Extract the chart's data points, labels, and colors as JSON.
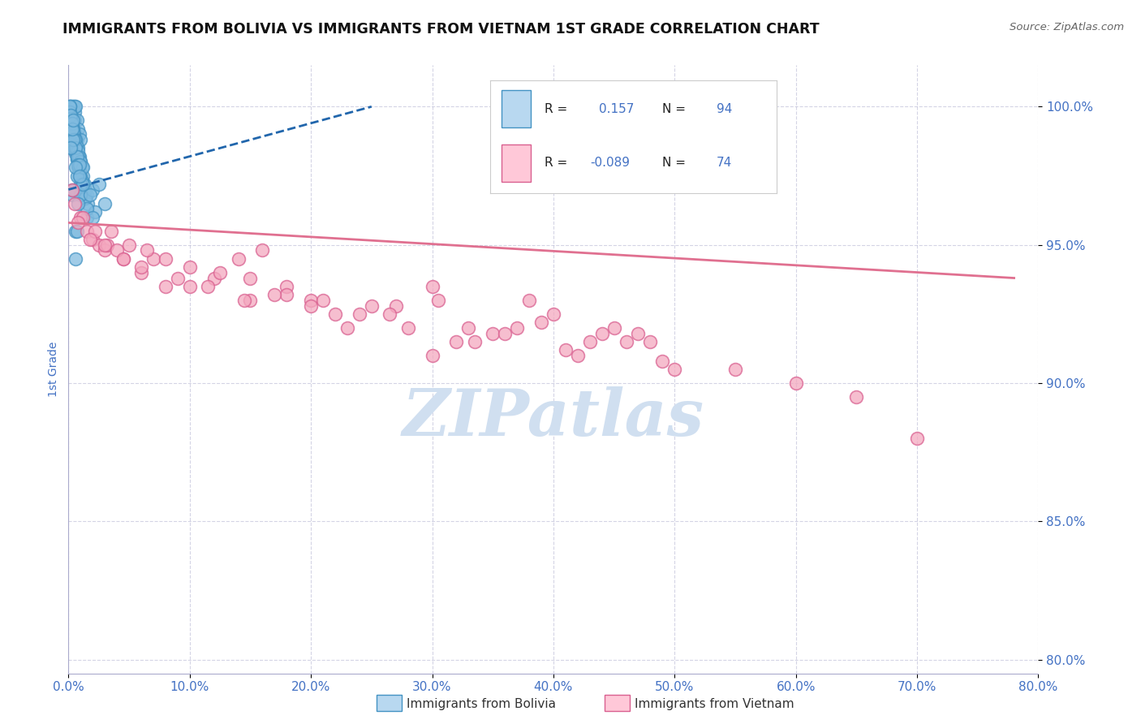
{
  "title": "IMMIGRANTS FROM BOLIVIA VS IMMIGRANTS FROM VIETNAM 1ST GRADE CORRELATION CHART",
  "source_text": "Source: ZipAtlas.com",
  "ylabel": "1st Grade",
  "watermark": "ZIPatlas",
  "xlim": [
    0.0,
    80.0
  ],
  "ylim": [
    79.5,
    101.5
  ],
  "xticks": [
    0.0,
    10.0,
    20.0,
    30.0,
    40.0,
    50.0,
    60.0,
    70.0,
    80.0
  ],
  "yticks": [
    80.0,
    85.0,
    90.0,
    95.0,
    100.0
  ],
  "ytick_labels": [
    "80.0%",
    "85.0%",
    "90.0%",
    "95.0%",
    "100.0%"
  ],
  "xtick_labels": [
    "0.0%",
    "10.0%",
    "20.0%",
    "30.0%",
    "40.0%",
    "50.0%",
    "60.0%",
    "70.0%",
    "80.0%"
  ],
  "bolivia_color": "#82bce0",
  "bolivia_edge_color": "#4393c3",
  "vietnam_color": "#f4a8bf",
  "vietnam_edge_color": "#d96090",
  "bolivia_line_color": "#2166ac",
  "vietnam_line_color": "#e07090",
  "tick_color": "#4472c4",
  "grid_color": "#aaaacc",
  "background_color": "#ffffff",
  "watermark_color": "#d0dff0",
  "legend_bolivia_color": "#b8d8f0",
  "legend_vietnam_color": "#ffc8d8",
  "bolivia_R": "0.157",
  "bolivia_N": "94",
  "vietnam_R": "-0.089",
  "vietnam_N": "74",
  "bolivia_line_x0": 0.0,
  "bolivia_line_y0": 97.0,
  "bolivia_line_x1": 25.0,
  "bolivia_line_y1": 100.0,
  "vietnam_line_x0": 0.0,
  "vietnam_line_y0": 95.8,
  "vietnam_line_x1": 78.0,
  "vietnam_line_y1": 93.8,
  "bolivia_scatter_x": [
    0.1,
    0.2,
    0.2,
    0.3,
    0.3,
    0.4,
    0.4,
    0.5,
    0.5,
    0.5,
    0.6,
    0.6,
    0.7,
    0.7,
    0.8,
    0.8,
    0.9,
    0.9,
    1.0,
    1.0,
    1.1,
    1.2,
    1.3,
    1.4,
    1.5,
    1.6,
    0.1,
    0.2,
    0.3,
    0.4,
    0.5,
    0.6,
    0.7,
    0.8,
    0.9,
    1.0,
    1.1,
    1.2,
    1.3,
    1.4,
    0.1,
    0.2,
    0.3,
    0.4,
    0.5,
    0.6,
    0.7,
    0.8,
    0.9,
    1.0,
    0.1,
    0.15,
    0.25,
    0.35,
    0.45,
    0.55,
    0.65,
    0.75,
    0.85,
    0.95,
    0.1,
    0.2,
    0.3,
    0.4,
    0.5,
    0.6,
    0.7,
    0.8,
    1.5,
    2.0,
    2.5,
    3.0,
    0.3,
    0.7,
    1.2,
    2.2,
    0.4,
    0.9,
    0.6,
    0.2,
    0.5,
    1.0,
    1.5,
    0.3,
    0.8,
    1.8,
    0.6,
    1.2,
    0.4,
    0.9,
    2.0,
    0.7,
    0.3,
    0.6
  ],
  "bolivia_scatter_y": [
    100.0,
    100.0,
    99.8,
    99.5,
    100.0,
    99.2,
    100.0,
    99.8,
    100.0,
    99.5,
    99.0,
    100.0,
    98.8,
    99.5,
    98.5,
    99.2,
    98.2,
    99.0,
    98.0,
    98.8,
    97.8,
    97.5,
    97.2,
    97.0,
    96.8,
    96.5,
    99.3,
    99.1,
    98.9,
    98.7,
    98.5,
    98.3,
    98.1,
    97.9,
    97.7,
    97.5,
    97.3,
    97.1,
    96.9,
    96.7,
    100.0,
    99.6,
    99.3,
    99.0,
    98.7,
    98.4,
    98.1,
    97.8,
    97.5,
    97.2,
    99.8,
    99.6,
    99.4,
    99.2,
    99.0,
    98.8,
    98.6,
    98.4,
    98.2,
    98.0,
    100.0,
    99.7,
    99.4,
    99.1,
    98.8,
    98.5,
    98.2,
    97.9,
    96.0,
    97.0,
    97.2,
    96.5,
    96.8,
    97.5,
    97.8,
    96.2,
    98.8,
    97.9,
    95.5,
    98.5,
    97.0,
    96.8,
    96.3,
    99.2,
    96.5,
    96.8,
    97.8,
    97.2,
    99.5,
    97.5,
    96.0,
    95.5,
    97.0,
    94.5
  ],
  "vietnam_scatter_x": [
    0.5,
    1.0,
    1.5,
    2.0,
    2.5,
    3.0,
    3.5,
    4.5,
    5.0,
    6.0,
    7.0,
    8.0,
    10.0,
    12.0,
    14.0,
    15.0,
    16.0,
    18.0,
    20.0,
    22.0,
    25.0,
    28.0,
    30.0,
    32.0,
    35.0,
    38.0,
    40.0,
    42.0,
    45.0,
    48.0,
    1.2,
    2.2,
    3.2,
    4.0,
    6.0,
    8.0,
    10.0,
    12.5,
    15.0,
    18.0,
    21.0,
    24.0,
    27.0,
    30.5,
    33.0,
    36.0,
    39.0,
    43.0,
    47.0,
    50.0,
    0.8,
    1.8,
    3.0,
    4.5,
    6.5,
    9.0,
    11.5,
    14.5,
    17.0,
    20.0,
    23.0,
    26.5,
    30.0,
    33.5,
    37.0,
    41.0,
    44.0,
    46.0,
    49.0,
    55.0,
    60.0,
    65.0,
    70.0,
    0.3
  ],
  "vietnam_scatter_y": [
    96.5,
    96.0,
    95.5,
    95.2,
    95.0,
    94.8,
    95.5,
    94.5,
    95.0,
    94.0,
    94.5,
    93.5,
    94.2,
    93.8,
    94.5,
    93.0,
    94.8,
    93.5,
    93.0,
    92.5,
    92.8,
    92.0,
    93.5,
    91.5,
    91.8,
    93.0,
    92.5,
    91.0,
    92.0,
    91.5,
    96.0,
    95.5,
    95.0,
    94.8,
    94.2,
    94.5,
    93.5,
    94.0,
    93.8,
    93.2,
    93.0,
    92.5,
    92.8,
    93.0,
    92.0,
    91.8,
    92.2,
    91.5,
    91.8,
    90.5,
    95.8,
    95.2,
    95.0,
    94.5,
    94.8,
    93.8,
    93.5,
    93.0,
    93.2,
    92.8,
    92.0,
    92.5,
    91.0,
    91.5,
    92.0,
    91.2,
    91.8,
    91.5,
    90.8,
    90.5,
    90.0,
    89.5,
    88.0,
    97.0
  ]
}
